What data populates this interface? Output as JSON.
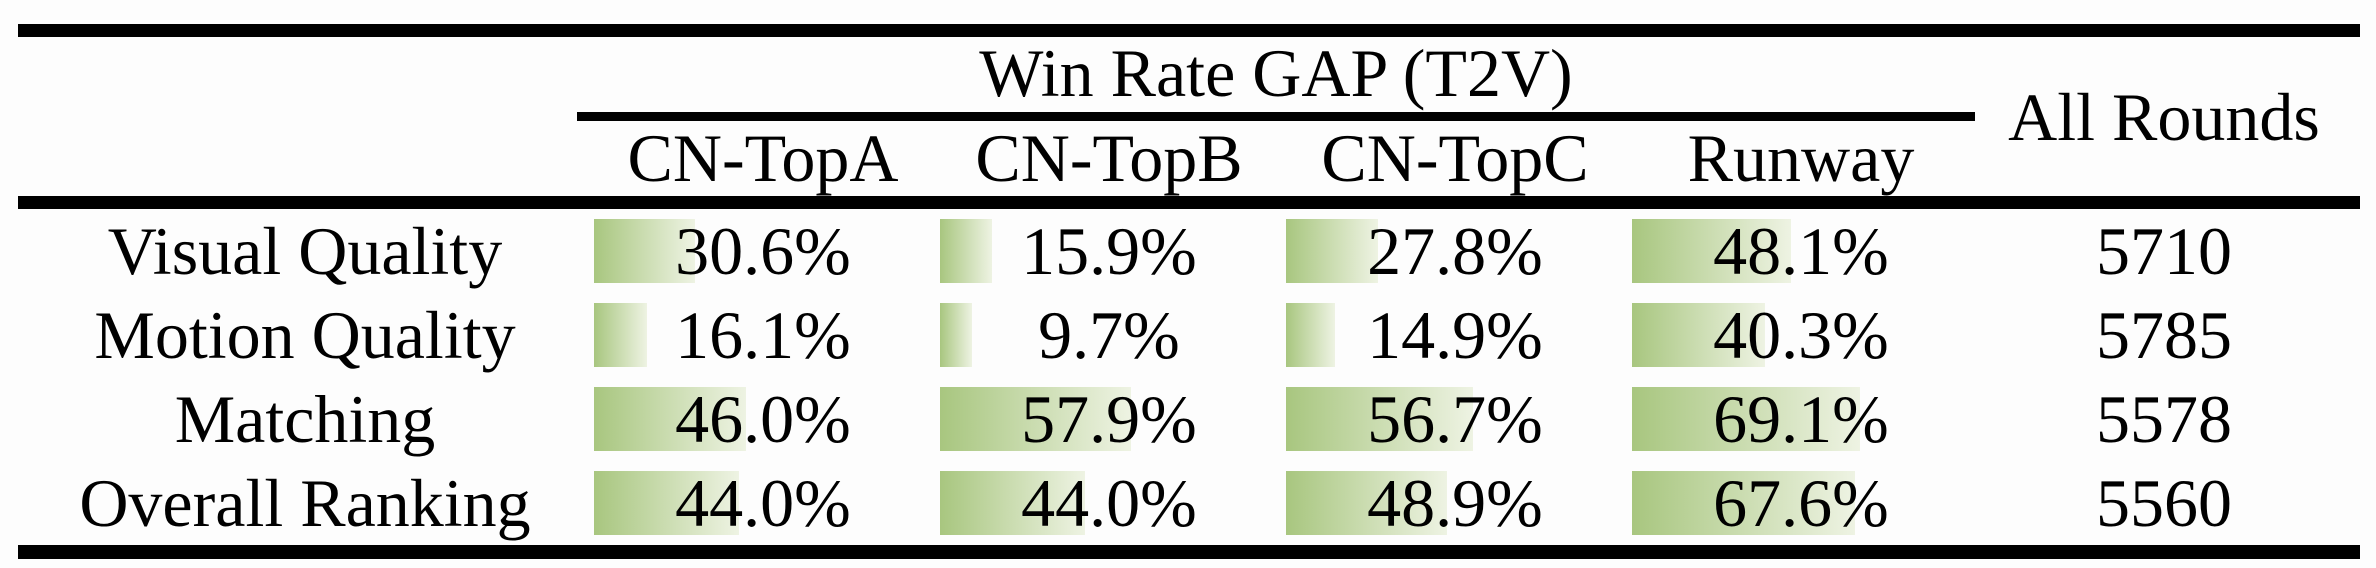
{
  "table": {
    "group_header": "Win Rate GAP (T2V)",
    "all_rounds_header": "All Rounds",
    "columns": [
      "CN-TopA",
      "CN-TopB",
      "CN-TopC",
      "Runway"
    ],
    "rows": [
      {
        "label": "Visual Quality",
        "values": [
          30.6,
          15.9,
          27.8,
          48.1
        ],
        "display": [
          "30.6%",
          "15.9%",
          "27.8%",
          "48.1%"
        ],
        "all_rounds": "5710"
      },
      {
        "label": "Motion Quality",
        "values": [
          16.1,
          9.7,
          14.9,
          40.3
        ],
        "display": [
          "16.1%",
          "9.7%",
          "14.9%",
          "40.3%"
        ],
        "all_rounds": "5785"
      },
      {
        "label": "Matching",
        "values": [
          46.0,
          57.9,
          56.7,
          69.1
        ],
        "display": [
          "46.0%",
          "57.9%",
          "56.7%",
          "69.1%"
        ],
        "all_rounds": "5578"
      },
      {
        "label": "Overall Ranking",
        "values": [
          44.0,
          44.0,
          48.9,
          67.6
        ],
        "display": [
          "44.0%",
          "44.0%",
          "48.9%",
          "67.6%"
        ],
        "all_rounds": "5560"
      }
    ],
    "bar_scale_max_percent": 100
  },
  "colors": {
    "bar_gradient_start": "#a8c67f",
    "bar_gradient_end": "#eef3e3",
    "rule": "#000000",
    "text": "#000000",
    "background": "#fdfdfd"
  }
}
